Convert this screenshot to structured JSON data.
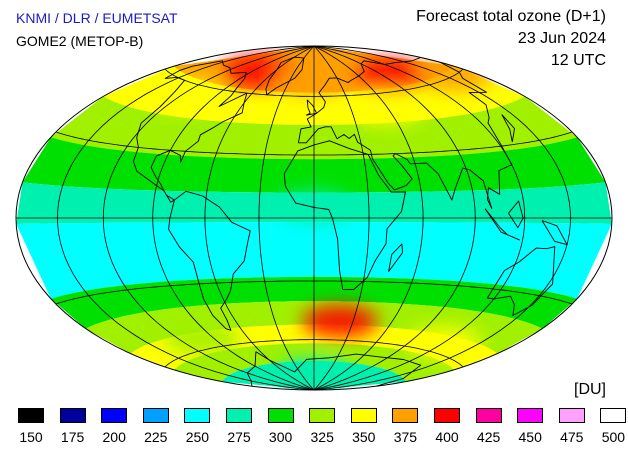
{
  "header": {
    "credit": "KNMI / DLR / EUMETSAT",
    "instrument": "GOME2 (METOP-B)",
    "title": "Forecast total ozone (D+1)",
    "date": "23 Jun 2024",
    "time": "12 UTC"
  },
  "map": {
    "projection": "hammer-aitoff",
    "graticule": "30-degree",
    "background_color": "#00ffff",
    "ozone_field_regions": [
      {
        "name": "arctic-high",
        "lon": -80,
        "lat": 72,
        "du": 400
      },
      {
        "name": "arctic-high",
        "lon": 0,
        "lat": 70,
        "du": 375
      },
      {
        "name": "arctic-high",
        "lon": 100,
        "lat": 68,
        "du": 400
      },
      {
        "name": "arctic-high",
        "lon": 160,
        "lat": 60,
        "du": 375
      },
      {
        "name": "northern-midlatitudes",
        "lon": -120,
        "lat": 55,
        "du": 350
      },
      {
        "name": "northern-midlatitudes",
        "lon": 60,
        "lat": 52,
        "du": 350
      },
      {
        "name": "tropics",
        "lon": 0,
        "lat": 5,
        "du": 275
      },
      {
        "name": "tropical-band-low",
        "lon": -20,
        "lat": -15,
        "du": 250
      },
      {
        "name": "tropical-band-low",
        "lon": 120,
        "lat": -15,
        "du": 250
      },
      {
        "name": "south-atlantic-high",
        "lon": 20,
        "lat": -50,
        "du": 400
      },
      {
        "name": "southern-ocean-ring",
        "lon": 120,
        "lat": -55,
        "du": 350
      },
      {
        "name": "southern-ocean-ring",
        "lon": -100,
        "lat": -55,
        "du": 325
      },
      {
        "name": "antarctic",
        "lon": 0,
        "lat": -80,
        "du": 275
      }
    ]
  },
  "legend": {
    "unit": "[DU]",
    "items": [
      {
        "value": "150",
        "color": "#000000"
      },
      {
        "value": "175",
        "color": "#00009c"
      },
      {
        "value": "200",
        "color": "#0000ff"
      },
      {
        "value": "225",
        "color": "#00a0ff"
      },
      {
        "value": "250",
        "color": "#00ffff"
      },
      {
        "value": "275",
        "color": "#00f0b0"
      },
      {
        "value": "300",
        "color": "#00e000"
      },
      {
        "value": "325",
        "color": "#a0f000"
      },
      {
        "value": "350",
        "color": "#ffff00"
      },
      {
        "value": "375",
        "color": "#ffa000"
      },
      {
        "value": "400",
        "color": "#ff0000"
      },
      {
        "value": "425",
        "color": "#ff00a0"
      },
      {
        "value": "450",
        "color": "#ff00ff"
      },
      {
        "value": "475",
        "color": "#ffa0ff"
      },
      {
        "value": "500",
        "color": "#ffffff"
      }
    ]
  }
}
